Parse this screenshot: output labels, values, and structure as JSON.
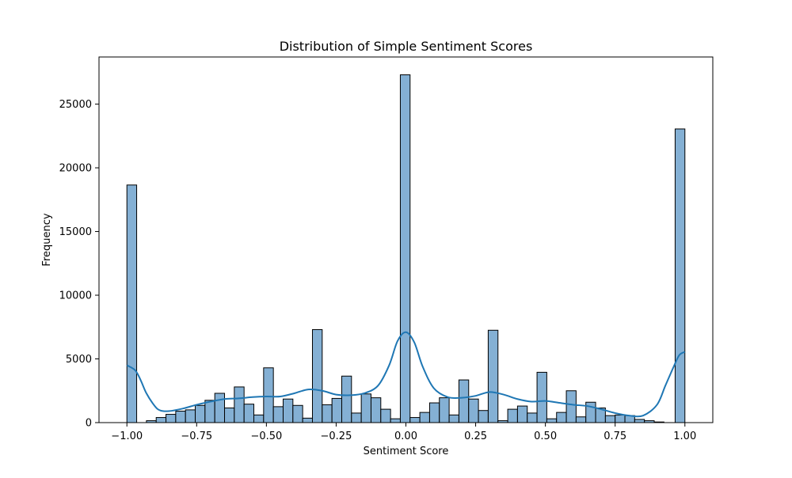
{
  "chart_data": {
    "type": "bar",
    "title": "Distribution of Simple Sentiment Scores",
    "xlabel": "Sentiment Score",
    "ylabel": "Frequency",
    "xlim": [
      -1.1,
      1.1
    ],
    "ylim": [
      0,
      28700
    ],
    "x_ticks": [
      -1.0,
      -0.75,
      -0.5,
      -0.25,
      0.0,
      0.25,
      0.5,
      0.75,
      1.0
    ],
    "x_tick_labels": [
      "−1.00",
      "−0.75",
      "−0.50",
      "−0.25",
      "0.00",
      "0.25",
      "0.50",
      "0.75",
      "1.00"
    ],
    "y_ticks": [
      0,
      5000,
      10000,
      15000,
      20000,
      25000
    ],
    "y_tick_labels": [
      "0",
      "5000",
      "10000",
      "15000",
      "20000",
      "25000"
    ],
    "bin_width": 0.035,
    "bars": [
      {
        "x0": -1.0,
        "value": 18650
      },
      {
        "x0": -0.965,
        "value": 0
      },
      {
        "x0": -0.93,
        "value": 150
      },
      {
        "x0": -0.895,
        "value": 400
      },
      {
        "x0": -0.86,
        "value": 650
      },
      {
        "x0": -0.825,
        "value": 900
      },
      {
        "x0": -0.79,
        "value": 1000
      },
      {
        "x0": -0.755,
        "value": 1350
      },
      {
        "x0": -0.72,
        "value": 1750
      },
      {
        "x0": -0.685,
        "value": 2300
      },
      {
        "x0": -0.65,
        "value": 1150
      },
      {
        "x0": -0.615,
        "value": 2800
      },
      {
        "x0": -0.58,
        "value": 1450
      },
      {
        "x0": -0.545,
        "value": 600
      },
      {
        "x0": -0.51,
        "value": 4300
      },
      {
        "x0": -0.475,
        "value": 1250
      },
      {
        "x0": -0.44,
        "value": 1850
      },
      {
        "x0": -0.405,
        "value": 1350
      },
      {
        "x0": -0.37,
        "value": 350
      },
      {
        "x0": -0.335,
        "value": 7300
      },
      {
        "x0": -0.3,
        "value": 1400
      },
      {
        "x0": -0.265,
        "value": 1900
      },
      {
        "x0": -0.23,
        "value": 3650
      },
      {
        "x0": -0.195,
        "value": 750
      },
      {
        "x0": -0.16,
        "value": 2250
      },
      {
        "x0": -0.125,
        "value": 1950
      },
      {
        "x0": -0.09,
        "value": 1050
      },
      {
        "x0": -0.055,
        "value": 300
      },
      {
        "x0": -0.02,
        "value": 27300
      },
      {
        "x0": 0.015,
        "value": 400
      },
      {
        "x0": 0.05,
        "value": 800
      },
      {
        "x0": 0.085,
        "value": 1550
      },
      {
        "x0": 0.12,
        "value": 1950
      },
      {
        "x0": 0.155,
        "value": 600
      },
      {
        "x0": 0.19,
        "value": 3350
      },
      {
        "x0": 0.225,
        "value": 1850
      },
      {
        "x0": 0.26,
        "value": 950
      },
      {
        "x0": 0.295,
        "value": 7250
      },
      {
        "x0": 0.33,
        "value": 150
      },
      {
        "x0": 0.365,
        "value": 1050
      },
      {
        "x0": 0.4,
        "value": 1300
      },
      {
        "x0": 0.435,
        "value": 750
      },
      {
        "x0": 0.47,
        "value": 3950
      },
      {
        "x0": 0.505,
        "value": 300
      },
      {
        "x0": 0.54,
        "value": 800
      },
      {
        "x0": 0.575,
        "value": 2500
      },
      {
        "x0": 0.61,
        "value": 450
      },
      {
        "x0": 0.645,
        "value": 1600
      },
      {
        "x0": 0.68,
        "value": 1150
      },
      {
        "x0": 0.715,
        "value": 550
      },
      {
        "x0": 0.75,
        "value": 600
      },
      {
        "x0": 0.785,
        "value": 550
      },
      {
        "x0": 0.82,
        "value": 250
      },
      {
        "x0": 0.855,
        "value": 150
      },
      {
        "x0": 0.89,
        "value": 50
      },
      {
        "x0": 0.925,
        "value": 0
      },
      {
        "x0": 0.965,
        "value": 23050
      }
    ],
    "kde": {
      "x": [
        -1.0,
        -0.97,
        -0.95,
        -0.93,
        -0.9,
        -0.88,
        -0.85,
        -0.8,
        -0.75,
        -0.7,
        -0.65,
        -0.6,
        -0.55,
        -0.5,
        -0.45,
        -0.4,
        -0.35,
        -0.3,
        -0.25,
        -0.2,
        -0.15,
        -0.1,
        -0.06,
        -0.03,
        0.0,
        0.03,
        0.06,
        0.1,
        0.15,
        0.2,
        0.25,
        0.3,
        0.35,
        0.4,
        0.45,
        0.5,
        0.55,
        0.6,
        0.65,
        0.7,
        0.75,
        0.8,
        0.85,
        0.9,
        0.93,
        0.96,
        0.98,
        1.0
      ],
      "y": [
        4500,
        4100,
        3300,
        2300,
        1300,
        950,
        900,
        1100,
        1400,
        1650,
        1850,
        1900,
        2000,
        2050,
        2050,
        2300,
        2600,
        2500,
        2200,
        2150,
        2300,
        2900,
        4500,
        6400,
        7100,
        6300,
        4400,
        2700,
        2000,
        1950,
        2100,
        2400,
        2200,
        1850,
        1650,
        1700,
        1550,
        1400,
        1300,
        1050,
        750,
        550,
        550,
        1400,
        2900,
        4400,
        5300,
        5550
      ]
    },
    "bar_color": "#84b0d4",
    "bar_edge_color": "#000000",
    "line_color": "#1f77b4",
    "grid": false,
    "legend": "none"
  }
}
